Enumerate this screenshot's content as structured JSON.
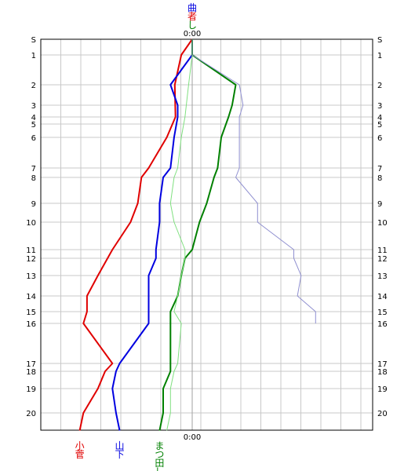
{
  "chart_data": {
    "type": "line",
    "orientation": "vertical",
    "title": "",
    "center_label": "0:00",
    "y_labels": [
      "S",
      "1",
      "2",
      "3",
      "4",
      "5",
      "6",
      "7",
      "8",
      "9",
      "10",
      "11",
      "12",
      "13",
      "14",
      "15",
      "16",
      "17",
      "18",
      "19",
      "20"
    ],
    "y_label_positions": [
      0,
      1,
      2,
      3,
      4,
      5,
      6,
      7,
      8,
      9,
      10,
      11,
      12,
      13,
      14,
      15,
      16,
      17,
      18,
      19,
      20
    ],
    "grid": true,
    "series": [
      {
        "name": "小菅",
        "color": "#e00000",
        "width": 2,
        "points": [
          [
            0,
            0
          ],
          [
            -1.5,
            1
          ],
          [
            -2.4,
            2
          ],
          [
            -2.3,
            4
          ],
          [
            -3.5,
            6
          ],
          [
            -6,
            7
          ],
          [
            -7,
            8
          ],
          [
            -7.5,
            9
          ],
          [
            -8.5,
            10
          ],
          [
            -11,
            11
          ],
          [
            -13,
            13
          ],
          [
            -14.5,
            14
          ],
          [
            -14.5,
            15
          ],
          [
            -15,
            16
          ],
          [
            -11,
            17
          ],
          [
            -12,
            18
          ],
          [
            -13,
            19
          ],
          [
            -15,
            20
          ],
          [
            -15.5,
            20.8
          ]
        ]
      },
      {
        "name": "山下",
        "color": "#0000e0",
        "width": 2,
        "points": [
          [
            0,
            0
          ],
          [
            0,
            1
          ],
          [
            -3,
            2
          ],
          [
            -2,
            3
          ],
          [
            -2,
            4
          ],
          [
            -2.5,
            6
          ],
          [
            -3,
            7
          ],
          [
            -4,
            8
          ],
          [
            -4.5,
            9
          ],
          [
            -4.5,
            10
          ],
          [
            -5,
            11
          ],
          [
            -5,
            12
          ],
          [
            -6,
            13
          ],
          [
            -6,
            14
          ],
          [
            -6,
            15
          ],
          [
            -6,
            16
          ],
          [
            -10,
            17
          ],
          [
            -10.5,
            18
          ],
          [
            -11,
            19
          ],
          [
            -10.5,
            20
          ],
          [
            -10,
            20.8
          ]
        ]
      },
      {
        "name": "まつ田し",
        "color": "#008000",
        "width": 2,
        "points": [
          [
            0,
            0
          ],
          [
            0,
            1
          ],
          [
            6,
            2
          ],
          [
            5.5,
            3
          ],
          [
            5,
            4
          ],
          [
            4,
            6
          ],
          [
            3.5,
            7
          ],
          [
            3,
            8
          ],
          [
            2,
            9
          ],
          [
            1,
            10
          ],
          [
            0,
            11
          ],
          [
            -1,
            12
          ],
          [
            -1.5,
            13
          ],
          [
            -2,
            14
          ],
          [
            -3,
            15
          ],
          [
            -3,
            16
          ],
          [
            -3,
            17
          ],
          [
            -3,
            18
          ],
          [
            -4,
            19
          ],
          [
            -4,
            20
          ],
          [
            -4.5,
            20.8
          ]
        ]
      },
      {
        "name": "曲者し",
        "color": "#80e080",
        "width": 1,
        "points": [
          [
            0,
            0
          ],
          [
            0,
            1
          ],
          [
            -0.5,
            2
          ],
          [
            -1,
            4
          ],
          [
            -1.5,
            6
          ],
          [
            -2,
            7
          ],
          [
            -2.5,
            8
          ],
          [
            -3,
            9
          ],
          [
            -2.5,
            10
          ],
          [
            -1,
            11
          ],
          [
            -1,
            12
          ],
          [
            -1.5,
            13
          ],
          [
            -2,
            14
          ],
          [
            -2.5,
            15
          ],
          [
            -1.5,
            16
          ],
          [
            -2,
            17
          ],
          [
            -2.5,
            18
          ],
          [
            -3,
            19
          ],
          [
            -3,
            20
          ],
          [
            -3.5,
            20.8
          ]
        ]
      },
      {
        "name": "",
        "color": "#9090d0",
        "width": 1,
        "points": [
          [
            0,
            0
          ],
          [
            0,
            1
          ],
          [
            6.5,
            2
          ],
          [
            7,
            3
          ],
          [
            6.5,
            4
          ],
          [
            6.5,
            5
          ],
          [
            6.5,
            6
          ],
          [
            6.5,
            7
          ],
          [
            6,
            8
          ],
          [
            9,
            9
          ],
          [
            9,
            10
          ],
          [
            14,
            11
          ],
          [
            14,
            12
          ],
          [
            15,
            13
          ],
          [
            14.5,
            14
          ],
          [
            17,
            15
          ],
          [
            17,
            16
          ]
        ]
      }
    ],
    "top_labels": [
      {
        "text": "曲",
        "color": "#0000e0"
      },
      {
        "text": "者",
        "color": "#e00000"
      },
      {
        "text": "し",
        "color": "#008000"
      }
    ],
    "bottom_labels": [
      {
        "text": "小菅",
        "color": "#e00000",
        "x": -15.5
      },
      {
        "text": "山下",
        "color": "#0000e0",
        "x": -10
      },
      {
        "text": "まつ田し",
        "color": "#008000",
        "x": -4.5
      }
    ]
  }
}
